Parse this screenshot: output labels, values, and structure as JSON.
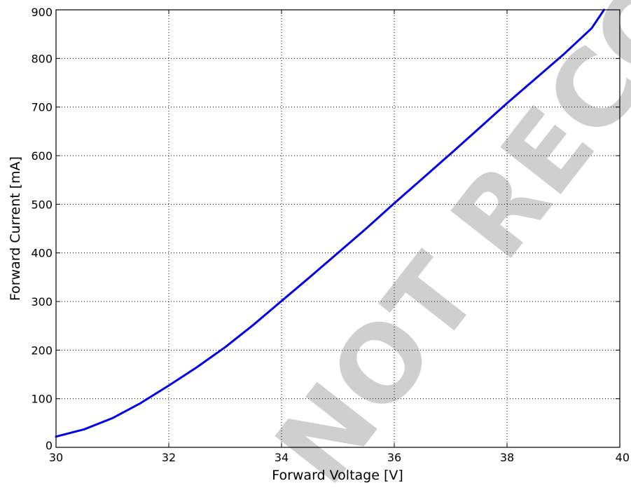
{
  "chart_data": {
    "type": "line",
    "title": "",
    "xlabel": "Forward Voltage [V]",
    "ylabel": "Forward Current [mA]",
    "xlim": [
      30,
      40
    ],
    "ylim": [
      0,
      900
    ],
    "xticks": [
      30,
      32,
      34,
      36,
      38,
      40
    ],
    "yticks": [
      0,
      100,
      200,
      300,
      400,
      500,
      600,
      700,
      800,
      900
    ],
    "grid": true,
    "series": [
      {
        "color": "#0000ee",
        "x": [
          30,
          30.5,
          31,
          31.5,
          32,
          32.5,
          33,
          33.5,
          34,
          34.5,
          35,
          35.5,
          36,
          36.5,
          37,
          37.5,
          38,
          38.5,
          39,
          39.5,
          39.72
        ],
        "y": [
          22,
          37,
          60,
          91,
          127,
          165,
          206,
          252,
          301,
          350,
          400,
          450,
          502,
          553,
          604,
          656,
          708,
          758,
          808,
          862,
          900
        ]
      }
    ]
  },
  "watermark": {
    "text": "NOT RECOMMENDED FOR NEW DESIGN",
    "color": "#cfcfcf"
  }
}
